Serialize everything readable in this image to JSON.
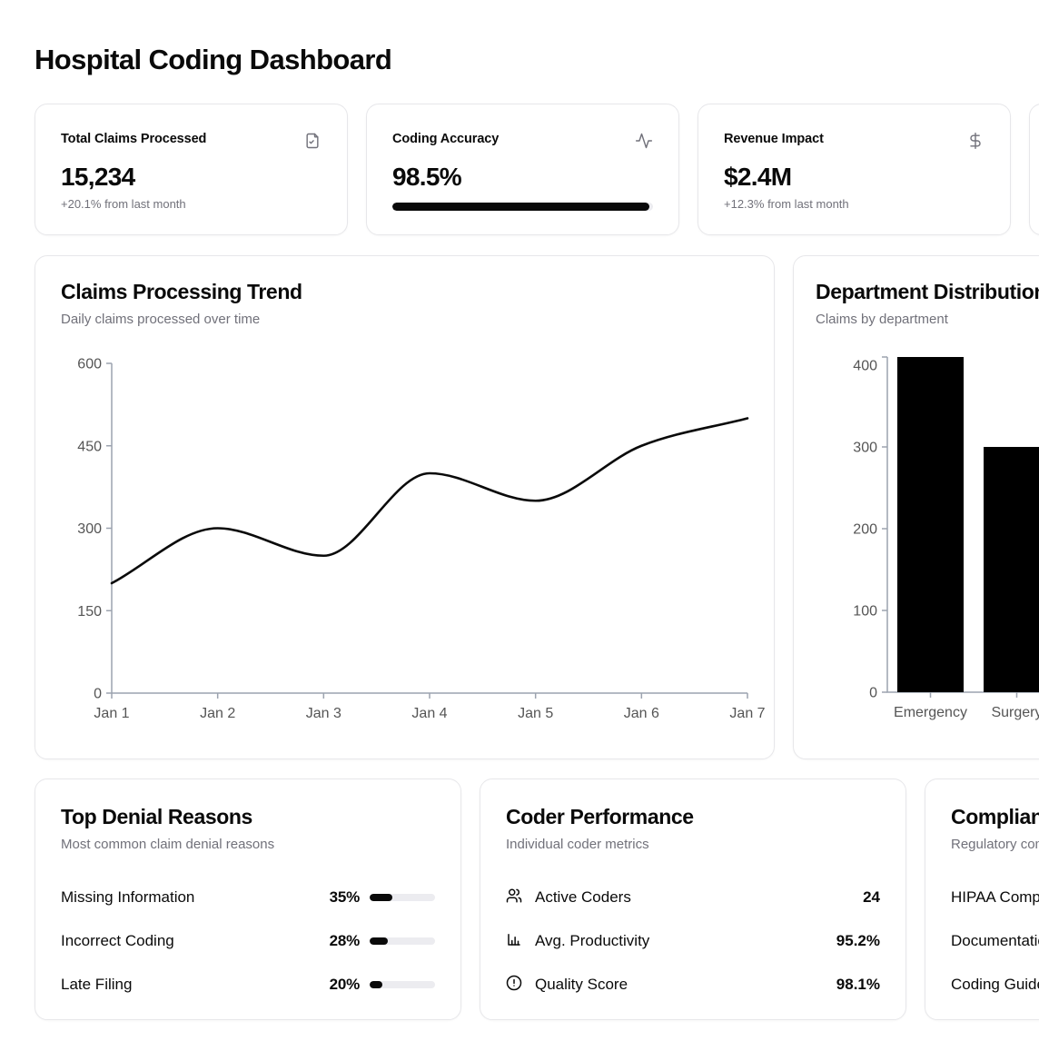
{
  "page": {
    "title": "Hospital Coding Dashboard"
  },
  "colors": {
    "text": "#0a0a0a",
    "muted": "#71717a",
    "card_border": "#e7e7ea",
    "axis_line": "#9ca3af",
    "axis_label": "#555555",
    "progress_track": "#ececf0",
    "progress_fill": "#0a0a0a",
    "series_color": "#000000",
    "background": "#ffffff"
  },
  "stat_cards": [
    {
      "label": "Total Claims Processed",
      "value": "15,234",
      "change": "+20.1% from last month",
      "icon": "file-check"
    },
    {
      "label": "Coding Accuracy",
      "value": "98.5%",
      "progress_percent": 98.5,
      "icon": "activity"
    },
    {
      "label": "Revenue Impact",
      "value": "$2.4M",
      "change": "+12.3% from last month",
      "icon": "dollar-sign"
    }
  ],
  "chart_data": [
    {
      "type": "line",
      "title": "Claims Processing Trend",
      "subtitle": "Daily claims processed over time",
      "x": [
        "Jan 1",
        "Jan 2",
        "Jan 3",
        "Jan 4",
        "Jan 5",
        "Jan 6",
        "Jan 7"
      ],
      "series": [
        {
          "name": "claims",
          "values": [
            200,
            300,
            250,
            400,
            350,
            450,
            500
          ]
        }
      ],
      "xlabel": "",
      "ylabel": "",
      "ylim": [
        0,
        600
      ],
      "yticks": [
        0,
        150,
        300,
        450,
        600
      ],
      "grid": false,
      "legend": "none",
      "line_color": "#0a0a0a",
      "curve": "monotone"
    },
    {
      "type": "bar",
      "title": "Department Distribution",
      "subtitle": "Claims by department",
      "categories": [
        "Emergency",
        "Surgery"
      ],
      "values": [
        410,
        300
      ],
      "xlabel": "",
      "ylabel": "",
      "ylim": [
        0,
        410
      ],
      "yticks": [
        0,
        100,
        200,
        300,
        400
      ],
      "grid": false,
      "legend": "none",
      "bar_color": "#000000"
    }
  ],
  "denial_card": {
    "title": "Top Denial Reasons",
    "subtitle": "Most common claim denial reasons",
    "rows": [
      {
        "label": "Missing Information",
        "percent": "35%",
        "value": 35
      },
      {
        "label": "Incorrect Coding",
        "percent": "28%",
        "value": 28
      },
      {
        "label": "Late Filing",
        "percent": "20%",
        "value": 20
      }
    ]
  },
  "coder_card": {
    "title": "Coder Performance",
    "subtitle": "Individual coder metrics",
    "rows": [
      {
        "icon": "users",
        "label": "Active Coders",
        "value": "24"
      },
      {
        "icon": "bar-chart",
        "label": "Avg. Productivity",
        "value": "95.2%"
      },
      {
        "icon": "alert-circle",
        "label": "Quality Score",
        "value": "98.1%"
      }
    ]
  },
  "compliance_card": {
    "title": "Compliance Status",
    "subtitle": "Regulatory compliance metrics",
    "rows": [
      {
        "label": "HIPAA Compliance"
      },
      {
        "label": "Documentation"
      },
      {
        "label": "Coding Guidelines"
      }
    ]
  }
}
